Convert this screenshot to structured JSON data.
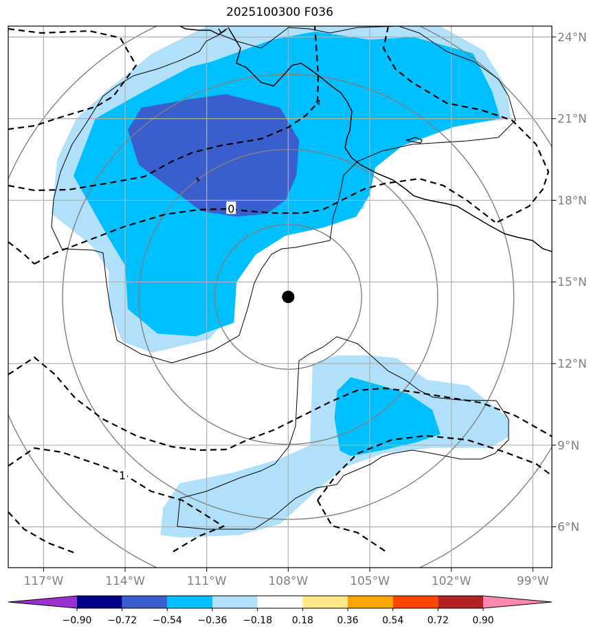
{
  "chart_data": {
    "type": "contour-map",
    "title": "2025100300 F036",
    "projection": "lat-lon",
    "xlim": [
      -118.3,
      -98.3
    ],
    "ylim": [
      4.5,
      24.4
    ],
    "lon_ticks": [
      {
        "value": -117,
        "label": "117°W"
      },
      {
        "value": -114,
        "label": "114°W"
      },
      {
        "value": -111,
        "label": "111°W"
      },
      {
        "value": -108,
        "label": "108°W"
      },
      {
        "value": -105,
        "label": "105°W"
      },
      {
        "value": -102,
        "label": "102°W"
      },
      {
        "value": -99,
        "label": "99°W"
      }
    ],
    "lat_ticks": [
      {
        "value": 24,
        "label": "24°N"
      },
      {
        "value": 21,
        "label": "21°N"
      },
      {
        "value": 18,
        "label": "18°N"
      },
      {
        "value": 15,
        "label": "15°N"
      },
      {
        "value": 12,
        "label": "12°N"
      },
      {
        "value": 9,
        "label": "9°N"
      },
      {
        "value": 6,
        "label": "6°N"
      }
    ],
    "grid": true,
    "center": {
      "lon": -108.0,
      "lat": 14.45
    },
    "range_rings_deg": [
      2.7,
      5.5,
      8.3,
      11.2
    ],
    "colorbar": {
      "orientation": "horizontal",
      "location": "bottom",
      "extend": "both",
      "levels": [
        -0.9,
        -0.72,
        -0.54,
        -0.36,
        -0.18,
        0.18,
        0.36,
        0.54,
        0.72,
        0.9
      ],
      "tick_labels": [
        "−0.90",
        "−0.72",
        "−0.54",
        "−0.36",
        "−0.18",
        "0.18",
        "0.36",
        "0.54",
        "0.72",
        "0.90"
      ],
      "colors": [
        "#9b30d0",
        "#00008b",
        "#3a5fcd",
        "#00bfff",
        "#b0e0fa",
        "#ffffff",
        "#ffe78a",
        "#ffa500",
        "#ff4500",
        "#b22222",
        "#ff88b0"
      ]
    },
    "contour_labels": [
      {
        "text": "0",
        "lon": -110.1,
        "lat": 17.7
      },
      {
        "text": "1",
        "lon": -114.1,
        "lat": 7.9
      }
    ],
    "fill_regions": [
      {
        "level": "-0.36 to -0.18",
        "color": "#b0e0fa",
        "polygon": [
          [
            -116.7,
            17.5
          ],
          [
            -116.5,
            19.5
          ],
          [
            -115.8,
            21.0
          ],
          [
            -114.7,
            22.0
          ],
          [
            -113.0,
            23.4
          ],
          [
            -111.0,
            24.4
          ],
          [
            -102.4,
            24.4
          ],
          [
            -100.8,
            23.5
          ],
          [
            -100.0,
            22.2
          ],
          [
            -99.8,
            21.0
          ],
          [
            -101.4,
            20.8
          ],
          [
            -103.4,
            20.4
          ],
          [
            -104.5,
            19.6
          ],
          [
            -105.2,
            18.6
          ],
          [
            -105.2,
            17.7
          ],
          [
            -106.8,
            17.2
          ],
          [
            -108.2,
            17.0
          ],
          [
            -109.3,
            16.4
          ],
          [
            -110.1,
            15.4
          ],
          [
            -110.3,
            13.6
          ],
          [
            -110.9,
            12.9
          ],
          [
            -113.0,
            12.4
          ],
          [
            -114.1,
            12.8
          ],
          [
            -114.6,
            14.0
          ],
          [
            -114.6,
            15.4
          ],
          [
            -115.2,
            16.3
          ],
          [
            -116.7,
            17.5
          ]
        ]
      },
      {
        "level": "-0.54 to -0.36",
        "color": "#00bfff",
        "polygon": [
          [
            -115.9,
            18.9
          ],
          [
            -115.1,
            21.0
          ],
          [
            -113.5,
            21.9
          ],
          [
            -111.6,
            22.9
          ],
          [
            -110.8,
            23.1
          ],
          [
            -108.6,
            23.9
          ],
          [
            -107.0,
            24.2
          ],
          [
            -105.0,
            23.9
          ],
          [
            -103.4,
            24.0
          ],
          [
            -101.2,
            23.4
          ],
          [
            -100.5,
            22.0
          ],
          [
            -100.2,
            21.0
          ],
          [
            -101.9,
            20.7
          ],
          [
            -103.8,
            20.0
          ],
          [
            -104.8,
            19.2
          ],
          [
            -105.0,
            18.2
          ],
          [
            -105.5,
            17.4
          ],
          [
            -106.7,
            17.0
          ],
          [
            -108.1,
            16.7
          ],
          [
            -109.2,
            16.0
          ],
          [
            -109.9,
            15.0
          ],
          [
            -110.0,
            13.5
          ],
          [
            -111.4,
            13.0
          ],
          [
            -112.8,
            13.1
          ],
          [
            -113.9,
            14.0
          ],
          [
            -114.0,
            15.6
          ],
          [
            -114.6,
            16.6
          ],
          [
            -115.9,
            18.9
          ]
        ]
      },
      {
        "level": "-0.72 to -0.54",
        "color": "#3a5fcd",
        "polygon": [
          [
            -112.0,
            18.2
          ],
          [
            -111.2,
            17.6
          ],
          [
            -109.9,
            17.4
          ],
          [
            -108.8,
            17.5
          ],
          [
            -108.1,
            18.0
          ],
          [
            -107.7,
            18.9
          ],
          [
            -107.6,
            20.2
          ],
          [
            -108.3,
            21.4
          ],
          [
            -110.3,
            21.9
          ],
          [
            -111.7,
            21.7
          ],
          [
            -113.4,
            21.4
          ],
          [
            -113.9,
            20.6
          ],
          [
            -113.5,
            19.3
          ],
          [
            -112.0,
            18.2
          ]
        ]
      },
      {
        "level": "-0.36 to -0.18",
        "color": "#b0e0fa",
        "polygon": [
          [
            -107.1,
            12.0
          ],
          [
            -106.2,
            12.3
          ],
          [
            -105.0,
            12.3
          ],
          [
            -104.0,
            12.2
          ],
          [
            -102.9,
            11.4
          ],
          [
            -101.4,
            11.2
          ],
          [
            -99.9,
            10.0
          ],
          [
            -99.9,
            9.3
          ],
          [
            -100.6,
            8.9
          ],
          [
            -102.7,
            8.9
          ],
          [
            -104.5,
            8.7
          ],
          [
            -105.9,
            8.2
          ],
          [
            -107.0,
            7.3
          ],
          [
            -108.3,
            6.1
          ],
          [
            -109.8,
            5.7
          ],
          [
            -111.9,
            5.6
          ],
          [
            -112.7,
            5.7
          ],
          [
            -112.6,
            6.7
          ],
          [
            -112.0,
            7.6
          ],
          [
            -110.0,
            8.0
          ],
          [
            -108.3,
            8.5
          ],
          [
            -107.2,
            9.0
          ],
          [
            -107.1,
            12.0
          ]
        ]
      },
      {
        "level": "-0.54 to -0.36",
        "color": "#00bfff",
        "polygon": [
          [
            -106.2,
            11.0
          ],
          [
            -105.7,
            11.5
          ],
          [
            -104.6,
            11.2
          ],
          [
            -103.6,
            10.9
          ],
          [
            -102.7,
            10.3
          ],
          [
            -102.4,
            9.4
          ],
          [
            -103.3,
            9.1
          ],
          [
            -104.6,
            8.8
          ],
          [
            -105.7,
            8.6
          ],
          [
            -106.1,
            8.8
          ],
          [
            -106.3,
            10.0
          ],
          [
            -106.2,
            11.0
          ]
        ]
      }
    ]
  }
}
